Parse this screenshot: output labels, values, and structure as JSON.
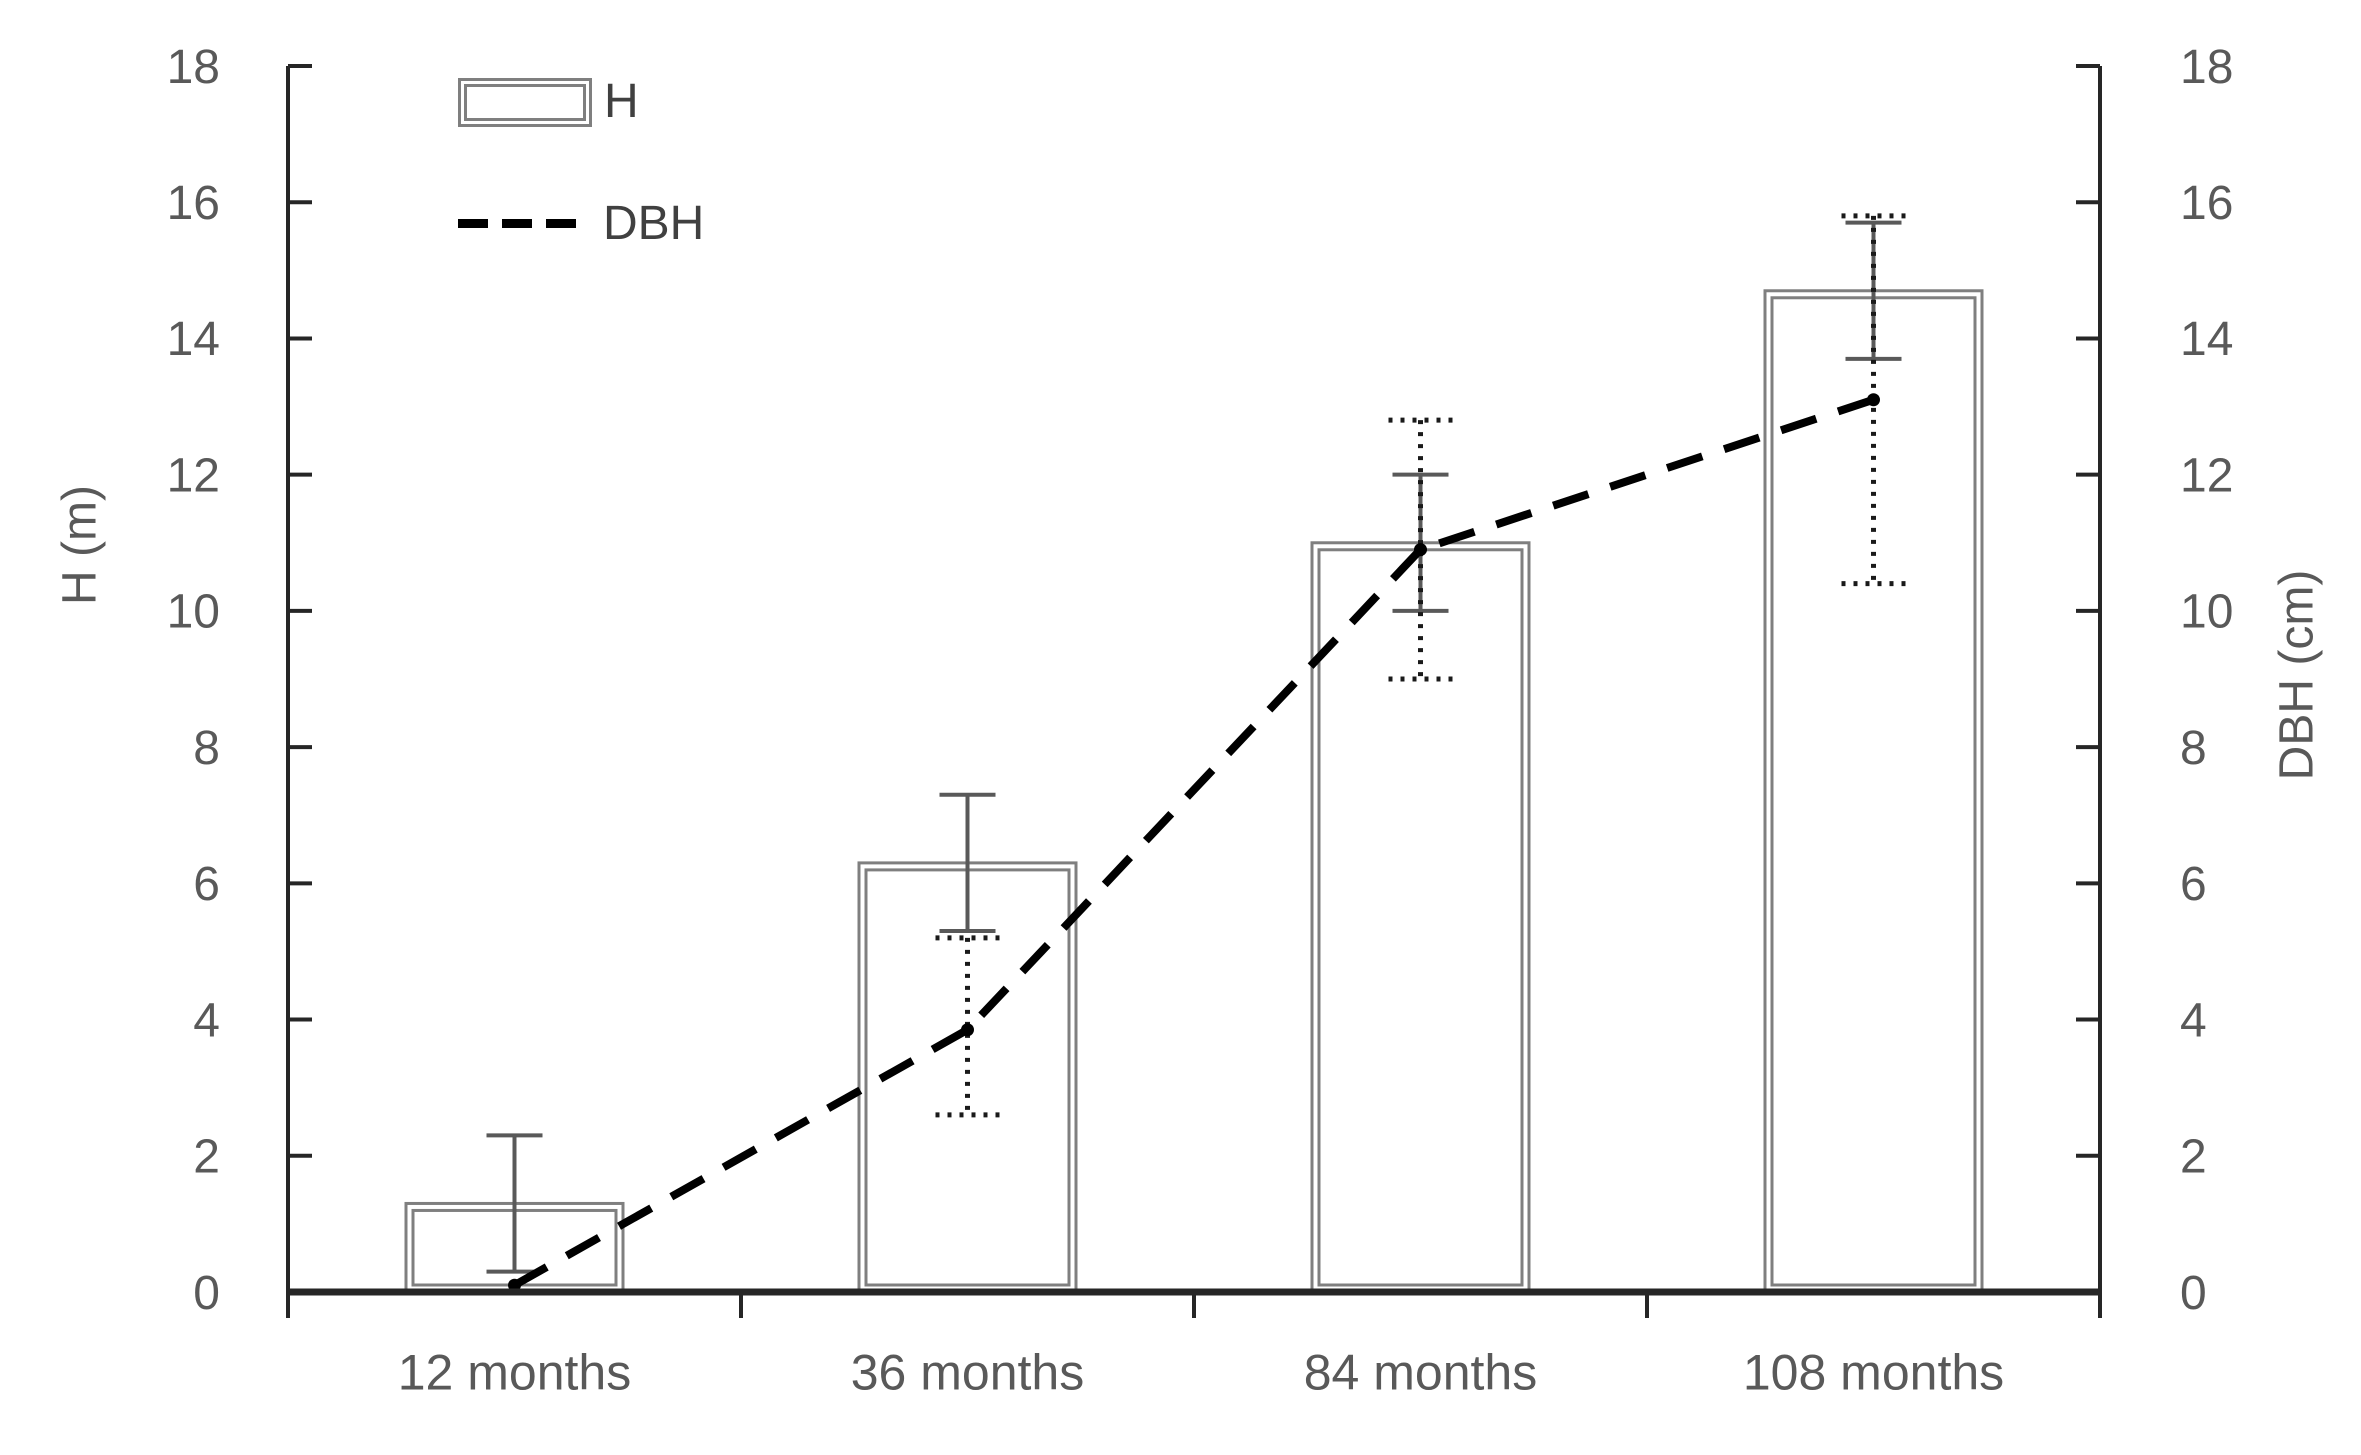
{
  "colors": {
    "background": "#ffffff",
    "axis_line": "#262626",
    "tick_label": "#595959",
    "axis_title": "#595959",
    "bar_border": "#7f7f7f",
    "bar_fill": "#ffffff",
    "h_error_bar": "#595959",
    "dbh_error_bar": "#1a1a1a",
    "dbh_line": "#000000",
    "legend_text": "#404040"
  },
  "legend": {
    "items": [
      {
        "label": "H",
        "swatch": "open-bar-outline"
      },
      {
        "label": "DBH",
        "swatch": "black-dashed-line"
      }
    ]
  },
  "chart_data": {
    "type": "bar",
    "subtype": "dual-axis bar + dashed line with error bars",
    "title": "",
    "categories": [
      "12 months",
      "36 months",
      "84 months",
      "108 months"
    ],
    "series": [
      {
        "name": "H",
        "type": "bar",
        "axis": "left",
        "values": [
          1.3,
          6.3,
          11.0,
          14.7
        ],
        "error_low": [
          0.3,
          5.3,
          10.0,
          13.7
        ],
        "error_high": [
          2.3,
          7.3,
          12.0,
          15.7
        ],
        "style": "white fill, double gray outline, solid gray error bars"
      },
      {
        "name": "DBH",
        "type": "line",
        "axis": "right",
        "values": [
          0.1,
          3.85,
          10.9,
          13.1
        ],
        "error_low": [
          null,
          2.6,
          9.0,
          10.4
        ],
        "error_high": [
          null,
          5.2,
          12.8,
          15.8
        ],
        "style": "black dashed line, dotted black error bars"
      }
    ],
    "left_axis": {
      "label": "H (m)",
      "min": 0,
      "max": 18,
      "ticks": [
        0,
        2,
        4,
        6,
        8,
        10,
        12,
        14,
        16,
        18
      ]
    },
    "right_axis": {
      "label": "DBH (cm)",
      "min": 0,
      "max": 18,
      "ticks": [
        0,
        2,
        4,
        6,
        8,
        10,
        12,
        14,
        16,
        18
      ]
    },
    "x_axis": {
      "tick_positions": "category boundaries"
    },
    "grid": false,
    "legend_position": "top-left inside plot"
  }
}
